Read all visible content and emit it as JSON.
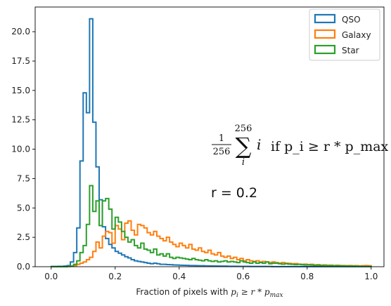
{
  "chart_data": {
    "type": "histogram",
    "xlabel_prefix": "Fraction of pixels with ",
    "xlabel_math": "p_i ≥ r * p_max",
    "ylabel": "",
    "xlim": [
      -0.05,
      1.04
    ],
    "ylim": [
      0,
      22.1
    ],
    "x_ticks": [
      "0.0",
      "0.2",
      "0.4",
      "0.6",
      "0.8",
      "1.0"
    ],
    "y_ticks": [
      "0.0",
      "2.5",
      "5.0",
      "7.5",
      "10.0",
      "12.5",
      "15.0",
      "17.5",
      "20.0"
    ],
    "grid": false,
    "legend_position": "top-right",
    "bin_start": 0.0,
    "bin_width": 0.01,
    "series": [
      {
        "name": "QSO",
        "color": "#1f77b4",
        "values": [
          0.02,
          0.02,
          0.03,
          0.03,
          0.05,
          0.1,
          0.4,
          1.2,
          3.3,
          9.0,
          14.8,
          13.1,
          21.1,
          12.3,
          8.5,
          5.7,
          3.4,
          2.4,
          1.9,
          1.6,
          1.3,
          1.15,
          1.0,
          0.85,
          0.75,
          0.6,
          0.5,
          0.45,
          0.4,
          0.35,
          0.3,
          0.25,
          0.3,
          0.25,
          0.2,
          0.2,
          0.18,
          0.17,
          0.15,
          0.14,
          0.13,
          0.12,
          0.11,
          0.1,
          0.1,
          0.09,
          0.08,
          0.08,
          0.07,
          0.07,
          0.06,
          0.06,
          0.05,
          0.05,
          0.05,
          0.04,
          0.04,
          0.04,
          0.03,
          0.03,
          0.03,
          0.03,
          0.02,
          0.02,
          0.02,
          0.02,
          0.02,
          0.02,
          0.02,
          0.01,
          0.01,
          0.01,
          0.01,
          0.01,
          0.01,
          0.01,
          0.01,
          0.01,
          0.01,
          0.01,
          0.01,
          0.01,
          0.01,
          0.01,
          0.01,
          0.01,
          0.01,
          0.01,
          0.01,
          0.01,
          0.01,
          0.01,
          0.01,
          0.01,
          0.01,
          0.01,
          0.01,
          0.01,
          0.01,
          0.01
        ]
      },
      {
        "name": "Galaxy",
        "color": "#ff7f0e",
        "values": [
          0,
          0,
          0,
          0,
          0,
          0.02,
          0.05,
          0.1,
          0.2,
          0.3,
          0.4,
          0.6,
          0.8,
          1.3,
          2.1,
          1.6,
          2.6,
          3.0,
          2.9,
          2.0,
          3.5,
          3.2,
          2.3,
          3.7,
          3.9,
          3.1,
          2.7,
          3.6,
          3.5,
          3.3,
          2.9,
          2.7,
          3.0,
          2.6,
          2.4,
          2.2,
          2.5,
          2.1,
          1.9,
          1.7,
          2.0,
          1.8,
          1.6,
          1.9,
          1.5,
          1.4,
          1.6,
          1.3,
          1.2,
          1.4,
          1.1,
          1.0,
          1.2,
          0.9,
          0.8,
          0.9,
          0.7,
          0.8,
          0.6,
          0.7,
          0.5,
          0.6,
          0.5,
          0.45,
          0.5,
          0.4,
          0.45,
          0.4,
          0.35,
          0.4,
          0.35,
          0.3,
          0.35,
          0.3,
          0.28,
          0.25,
          0.27,
          0.22,
          0.2,
          0.22,
          0.18,
          0.2,
          0.15,
          0.17,
          0.13,
          0.15,
          0.12,
          0.13,
          0.1,
          0.12,
          0.1,
          0.1,
          0.09,
          0.1,
          0.08,
          0.09,
          0.07,
          0.08,
          0.1,
          0.08
        ]
      },
      {
        "name": "Star",
        "color": "#2ca02c",
        "values": [
          0,
          0,
          0,
          0,
          0,
          0.02,
          0.05,
          0.2,
          0.5,
          1.2,
          1.8,
          3.6,
          6.9,
          4.7,
          5.6,
          3.5,
          5.6,
          5.8,
          4.9,
          3.2,
          4.2,
          3.8,
          3.0,
          2.5,
          2.1,
          2.3,
          1.8,
          1.6,
          2.0,
          1.5,
          1.4,
          1.2,
          1.5,
          1.0,
          1.1,
          0.9,
          1.1,
          0.8,
          0.7,
          0.8,
          0.75,
          0.7,
          0.65,
          0.6,
          0.7,
          0.6,
          0.55,
          0.5,
          0.6,
          0.5,
          0.45,
          0.5,
          0.4,
          0.45,
          0.5,
          0.4,
          0.45,
          0.4,
          0.35,
          0.5,
          0.4,
          0.35,
          0.3,
          0.4,
          0.3,
          0.35,
          0.3,
          0.4,
          0.25,
          0.3,
          0.3,
          0.25,
          0.22,
          0.25,
          0.22,
          0.2,
          0.18,
          0.2,
          0.17,
          0.15,
          0.16,
          0.14,
          0.12,
          0.13,
          0.11,
          0.1,
          0.1,
          0.1,
          0.09,
          0.08,
          0.08,
          0.07,
          0.06,
          0.05,
          0.05,
          0.04,
          0.04,
          0.03,
          0.02,
          0.02
        ]
      }
    ],
    "annotation": {
      "frac_num": "1",
      "frac_den": "256",
      "sum_upper": "256",
      "sum_lower": "i",
      "term": "i",
      "condition": "if p_i ≥ r * p_max",
      "r_text": "r = 0.2"
    }
  }
}
